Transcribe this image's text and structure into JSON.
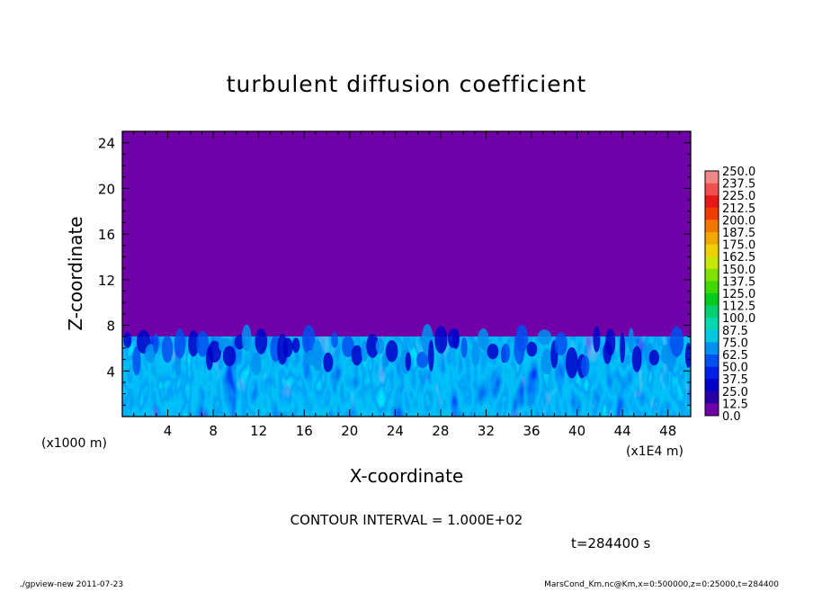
{
  "chart_data": {
    "type": "heatmap",
    "title": "turbulent diffusion coefficient",
    "xlabel": "X-coordinate",
    "ylabel": "Z-coordinate",
    "x_unit": "(x1E4 m)",
    "y_unit": "(x1000 m)",
    "xlim": [
      0,
      50
    ],
    "ylim": [
      0,
      25
    ],
    "x_ticks": [
      4,
      8,
      12,
      16,
      20,
      24,
      28,
      32,
      36,
      40,
      44,
      48
    ],
    "y_ticks": [
      4,
      8,
      12,
      16,
      20,
      24
    ],
    "turbulent_layer_top_approx": 7,
    "colorbar": {
      "min": 0.0,
      "max": 250.0,
      "labels": [
        "250.0",
        "237.5",
        "225.0",
        "212.5",
        "200.0",
        "187.5",
        "175.0",
        "162.5",
        "150.0",
        "137.5",
        "125.0",
        "112.5",
        "100.0",
        "87.5",
        "75.0",
        "62.5",
        "50.0",
        "37.5",
        "25.0",
        "12.5",
        "0.0"
      ],
      "colors": [
        "#f08888",
        "#f05050",
        "#e81818",
        "#f03c00",
        "#f07800",
        "#f0a800",
        "#f0d000",
        "#c8e800",
        "#80e000",
        "#40d800",
        "#00cc20",
        "#00d070",
        "#00d8b0",
        "#00c8e0",
        "#0090f0",
        "#0050f0",
        "#0020e8",
        "#0000c8",
        "#2800a8",
        "#7000a8"
      ]
    },
    "contour_interval": "CONTOUR INTERVAL = 1.000E+02",
    "time_label": "t=284400 s",
    "colors": {
      "background": "#7000a8",
      "turbulence_dark": "#0000c8",
      "turbulence_mid": "#0050f0",
      "turbulence_light": "#0090f0"
    }
  },
  "footer": {
    "left": "./gpview-new   2011-07-23",
    "right": "MarsCond_Km.nc@Km,x=0:500000,z=0:25000,t=284400"
  }
}
